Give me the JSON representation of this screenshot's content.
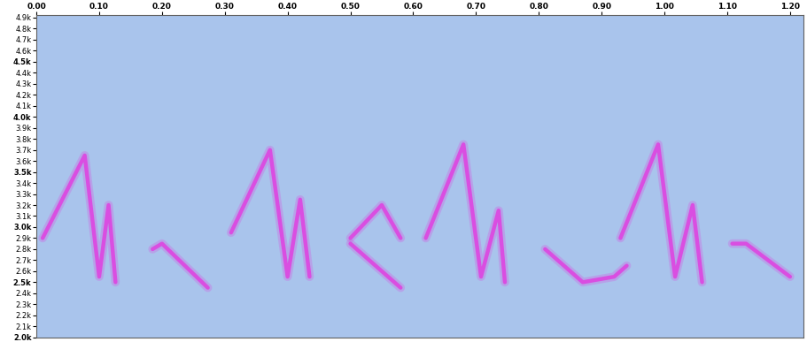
{
  "chart_data": {
    "type": "spectrogram",
    "xlim": [
      0,
      1.222
    ],
    "ylim": [
      1995,
      4920
    ],
    "xticks": [
      {
        "value": 0,
        "label": "0.00"
      },
      {
        "value": 0.1,
        "label": "0.10"
      },
      {
        "value": 0.2,
        "label": "0.20"
      },
      {
        "value": 0.3,
        "label": "0.30"
      },
      {
        "value": 0.4,
        "label": "0.40"
      },
      {
        "value": 0.5,
        "label": "0.50"
      },
      {
        "value": 0.6,
        "label": "0.60"
      },
      {
        "value": 0.7,
        "label": "0.70"
      },
      {
        "value": 0.8,
        "label": "0.80"
      },
      {
        "value": 0.9,
        "label": "0.90"
      },
      {
        "value": 1.0,
        "label": "1.00"
      },
      {
        "value": 1.1,
        "label": "1.10"
      },
      {
        "value": 1.2,
        "label": "1.20"
      }
    ],
    "yticks": [
      {
        "value": 2000,
        "label": "2.0k"
      },
      {
        "value": 2100,
        "label": "2.1k"
      },
      {
        "value": 2200,
        "label": "2.2k"
      },
      {
        "value": 2300,
        "label": "2.3k"
      },
      {
        "value": 2400,
        "label": "2.4k"
      },
      {
        "value": 2500,
        "label": "2.5k"
      },
      {
        "value": 2600,
        "label": "2.6k"
      },
      {
        "value": 2700,
        "label": "2.7k"
      },
      {
        "value": 2800,
        "label": "2.8k"
      },
      {
        "value": 2900,
        "label": "2.9k"
      },
      {
        "value": 3000,
        "label": "3.0k"
      },
      {
        "value": 3100,
        "label": "3.1k"
      },
      {
        "value": 3200,
        "label": "3.2k"
      },
      {
        "value": 3300,
        "label": "3.3k"
      },
      {
        "value": 3400,
        "label": "3.4k"
      },
      {
        "value": 3500,
        "label": "3.5k"
      },
      {
        "value": 3600,
        "label": "3.6k"
      },
      {
        "value": 3700,
        "label": "3.7k"
      },
      {
        "value": 3800,
        "label": "3.8k"
      },
      {
        "value": 3900,
        "label": "3.9k"
      },
      {
        "value": 4000,
        "label": "4.0k"
      },
      {
        "value": 4100,
        "label": "4.1k"
      },
      {
        "value": 4200,
        "label": "4.2k"
      },
      {
        "value": 4300,
        "label": "4.3k"
      },
      {
        "value": 4400,
        "label": "4.4k"
      },
      {
        "value": 4500,
        "label": "4.5k"
      },
      {
        "value": 4600,
        "label": "4.6k"
      },
      {
        "value": 4700,
        "label": "4.7k"
      },
      {
        "value": 4800,
        "label": "4.8k"
      },
      {
        "value": 4900,
        "label": "4.9k"
      }
    ],
    "grid": false,
    "color": "#e040e0",
    "series": [
      {
        "x": [
          0.01,
          0.077,
          0.1,
          0.115,
          0.126
        ],
        "values": [
          2900,
          3650,
          2550,
          3200,
          2500
        ]
      },
      {
        "x": [
          0.185,
          0.2,
          0.273
        ],
        "values": [
          2800,
          2850,
          2450
        ]
      },
      {
        "x": [
          0.31,
          0.372,
          0.4,
          0.42,
          0.435
        ],
        "values": [
          2950,
          3700,
          2550,
          3250,
          2550
        ]
      },
      {
        "x": [
          0.5,
          0.55,
          0.58
        ],
        "values": [
          2900,
          3200,
          2900
        ]
      },
      {
        "x": [
          0.5,
          0.58
        ],
        "values": [
          2850,
          2450
        ]
      },
      {
        "x": [
          0.62,
          0.68,
          0.708,
          0.736,
          0.746
        ],
        "values": [
          2900,
          3750,
          2550,
          3150,
          2500
        ]
      },
      {
        "x": [
          0.81,
          0.87,
          0.92,
          0.94
        ],
        "values": [
          2800,
          2500,
          2550,
          2650
        ]
      },
      {
        "x": [
          0.93,
          0.99,
          1.017,
          1.045,
          1.06
        ],
        "values": [
          2900,
          3750,
          2550,
          3200,
          2500
        ]
      },
      {
        "x": [
          1.108,
          1.13,
          1.2
        ],
        "values": [
          2850,
          2850,
          2550
        ]
      }
    ]
  }
}
